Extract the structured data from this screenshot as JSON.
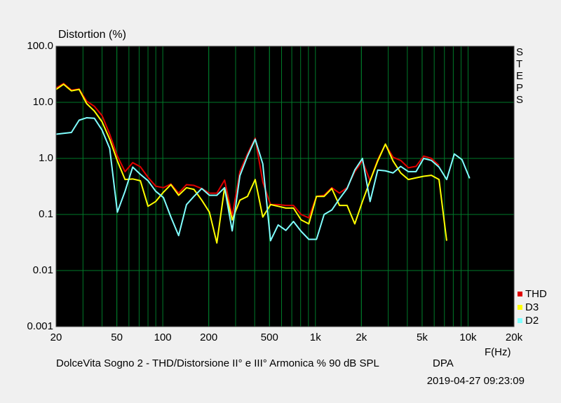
{
  "chart_data": {
    "type": "line",
    "title": "Distortion (%)",
    "x_label": "F(Hz)",
    "subtitle": "DolceVita Sogno 2 - THD/Distorsione II° e III° Armonica % 90 dB SPL",
    "source": "DPA",
    "timestamp": "2019-04-27 09:23:09",
    "side_label": "STEPS",
    "xscale": "log",
    "yscale": "log",
    "grid": true,
    "legend": "lower right",
    "xlim": [
      20,
      20000
    ],
    "ylim": [
      0.001,
      100
    ],
    "xticks": [
      20,
      50,
      100,
      200,
      500,
      {
        "value": 1000,
        "label": "1k"
      },
      {
        "value": 2000,
        "label": "2k"
      },
      {
        "value": 5000,
        "label": "5k"
      },
      {
        "value": 10000,
        "label": "10k"
      },
      {
        "value": 20000,
        "label": "20k"
      }
    ],
    "yticks": [
      {
        "value": 100,
        "label": "100.0"
      },
      {
        "value": 10,
        "label": "10.0"
      },
      {
        "value": 1,
        "label": "1.0"
      },
      0.1,
      0.01,
      0.001
    ],
    "x": [
      20,
      22.4,
      25.2,
      28.3,
      31.7,
      35.6,
      40,
      44.9,
      50.4,
      56.6,
      63.5,
      71.3,
      80,
      89.8,
      101,
      113,
      127,
      143,
      160,
      180,
      202,
      226,
      254,
      285,
      320,
      359,
      403,
      452,
      508,
      570,
      640,
      718,
      806,
      905,
      1016,
      1140,
      1280,
      1437,
      1613,
      1810,
      2032,
      2281,
      2560,
      2874,
      3225,
      3620,
      4064,
      4561,
      5120,
      5747,
      6451,
      7241,
      8127,
      9123,
      10240
    ],
    "series": [
      {
        "name": "THD",
        "color": "#e00000",
        "values": [
          18,
          21.7,
          16.5,
          17.3,
          10.5,
          8.5,
          5.8,
          2.7,
          1.1,
          0.58,
          0.84,
          0.71,
          0.46,
          0.32,
          0.3,
          0.35,
          0.24,
          0.34,
          0.33,
          0.29,
          0.24,
          0.24,
          0.41,
          0.094,
          0.58,
          1.2,
          2.3,
          0.38,
          0.15,
          0.15,
          0.145,
          0.145,
          0.1,
          0.087,
          0.21,
          0.22,
          0.3,
          0.24,
          0.3,
          0.58,
          0.9,
          0.4,
          0.95,
          1.78,
          1.05,
          0.92,
          0.68,
          0.72,
          1.1,
          1.0,
          0.75,
          null,
          null,
          null,
          null
        ]
      },
      {
        "name": "D3",
        "color": "#ffff00",
        "values": [
          17,
          21,
          16,
          17,
          9.5,
          7,
          4.5,
          2.2,
          0.9,
          0.42,
          0.43,
          0.4,
          0.14,
          0.17,
          0.25,
          0.34,
          0.22,
          0.3,
          0.28,
          0.18,
          0.11,
          0.031,
          0.3,
          0.08,
          0.18,
          0.21,
          0.42,
          0.09,
          0.15,
          0.14,
          0.13,
          0.13,
          0.08,
          0.068,
          0.21,
          0.21,
          0.29,
          0.145,
          0.145,
          0.068,
          0.17,
          0.4,
          0.9,
          1.8,
          0.9,
          0.55,
          0.42,
          0.45,
          0.48,
          0.5,
          0.42,
          0.034,
          null,
          null,
          null
        ]
      },
      {
        "name": "D2",
        "color": "#80ffff",
        "values": [
          2.7,
          2.8,
          2.9,
          4.8,
          5.3,
          5.2,
          3.2,
          1.5,
          0.11,
          0.26,
          0.7,
          0.52,
          0.4,
          0.26,
          0.2,
          0.09,
          0.042,
          0.15,
          0.21,
          0.29,
          0.22,
          0.22,
          0.3,
          0.051,
          0.49,
          1.1,
          2.2,
          0.8,
          0.034,
          0.065,
          0.052,
          0.075,
          0.05,
          0.036,
          0.036,
          0.1,
          0.12,
          0.19,
          0.29,
          0.62,
          1.0,
          0.17,
          0.62,
          0.6,
          0.55,
          0.72,
          0.58,
          0.58,
          1.0,
          0.92,
          0.7,
          0.42,
          1.2,
          0.95,
          0.44
        ]
      }
    ]
  }
}
